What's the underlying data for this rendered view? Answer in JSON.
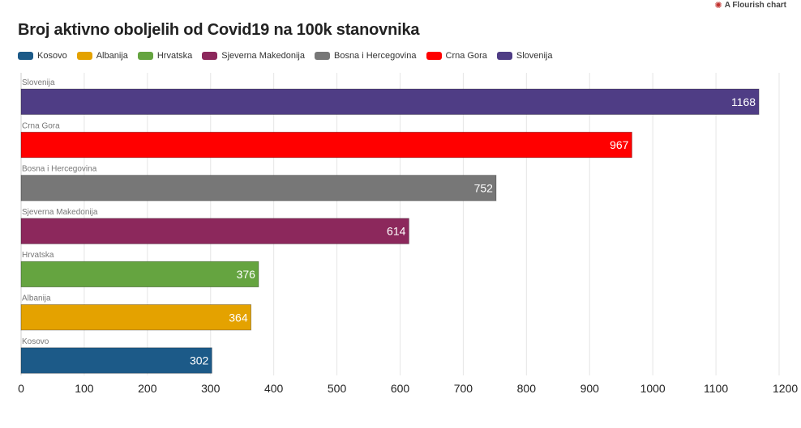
{
  "credit": {
    "text": "A Flourish chart",
    "icon": "flourish-logo-icon"
  },
  "chart_data": {
    "type": "bar",
    "orientation": "horizontal",
    "title": "Broj aktivno oboljelih od Covid19 na 100k stanovnika",
    "categories": [
      "Slovenija",
      "Crna Gora",
      "Bosna i Hercegovina",
      "Sjeverna Makedonija",
      "Hrvatska",
      "Albanija",
      "Kosovo"
    ],
    "values": [
      1168,
      967,
      752,
      614,
      376,
      364,
      302
    ],
    "colors": [
      "#4f3d85",
      "#ff0000",
      "#777777",
      "#8c285c",
      "#65a440",
      "#e4a200",
      "#1c5a88"
    ],
    "legend": [
      {
        "label": "Kosovo",
        "color": "#1c5a88"
      },
      {
        "label": "Albanija",
        "color": "#e4a200"
      },
      {
        "label": "Hrvatska",
        "color": "#65a440"
      },
      {
        "label": "Sjeverna Makedonija",
        "color": "#8c285c"
      },
      {
        "label": "Bosna i Hercegovina",
        "color": "#777777"
      },
      {
        "label": "Crna Gora",
        "color": "#ff0000"
      },
      {
        "label": "Slovenija",
        "color": "#4f3d85"
      }
    ],
    "legend_position": "top-left",
    "xlim": [
      0,
      1200
    ],
    "xticks": [
      "0",
      "100",
      "200",
      "300",
      "400",
      "500",
      "600",
      "700",
      "800",
      "900",
      "1000",
      "1100",
      "1200"
    ],
    "grid": true
  }
}
